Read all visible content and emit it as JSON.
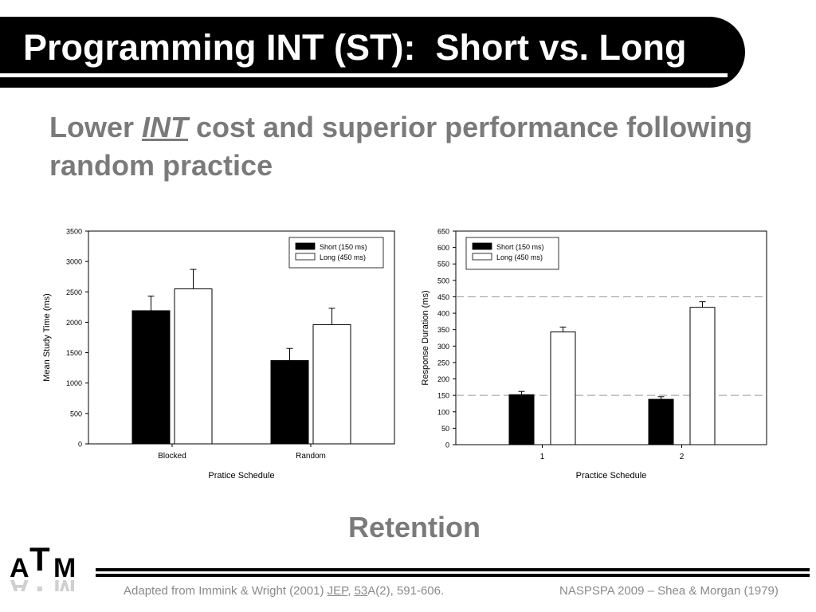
{
  "slide": {
    "title": "Programming INT (ST):  Short vs. Long",
    "subtitle": {
      "part1": "Lower ",
      "emphasis": "INT",
      "part2": " cost and superior performance following random practice"
    },
    "retention_label": "Retention",
    "logo_text": "ATM",
    "footer_left": {
      "prefix": "Adapted from Immink & Wright (2001) ",
      "journal": "JEP",
      "sep": ", ",
      "volume": "53",
      "suffix": "A(2), 591-606."
    },
    "footer_right": "NASPSPA 2009 – Shea & Morgan (1979)"
  },
  "chart_data": [
    {
      "type": "bar",
      "categories": [
        "Blocked",
        "Random"
      ],
      "series": [
        {
          "name": "Short (150 ms)",
          "values": [
            2190,
            1370
          ],
          "errors": [
            240,
            200
          ],
          "color": "#000000"
        },
        {
          "name": "Long (450 ms)",
          "values": [
            2550,
            1960
          ],
          "errors": [
            320,
            270
          ],
          "color": "#ffffff"
        }
      ],
      "xlabel": "Pratice Schedule",
      "ylabel": "Mean Study Time (ms)",
      "ylim": [
        0,
        3500
      ],
      "yticks": [
        0,
        500,
        1000,
        1500,
        2000,
        2500,
        3000,
        3500
      ],
      "legend": "top-right",
      "grid": false
    },
    {
      "type": "bar",
      "categories": [
        "1",
        "2"
      ],
      "series": [
        {
          "name": "Short (150 ms)",
          "values": [
            152,
            138
          ],
          "errors": [
            10,
            8
          ],
          "color": "#000000"
        },
        {
          "name": "Long (450 ms)",
          "values": [
            343,
            418
          ],
          "errors": [
            15,
            17
          ],
          "color": "#ffffff"
        }
      ],
      "xlabel": "Practice Schedule",
      "ylabel": "Response Duration (ms)",
      "ylim": [
        0,
        650
      ],
      "yticks": [
        0,
        50,
        100,
        150,
        200,
        250,
        300,
        350,
        400,
        450,
        500,
        550,
        600,
        650
      ],
      "reference_lines": [
        150,
        450
      ],
      "legend": "top-left",
      "grid": false
    }
  ]
}
